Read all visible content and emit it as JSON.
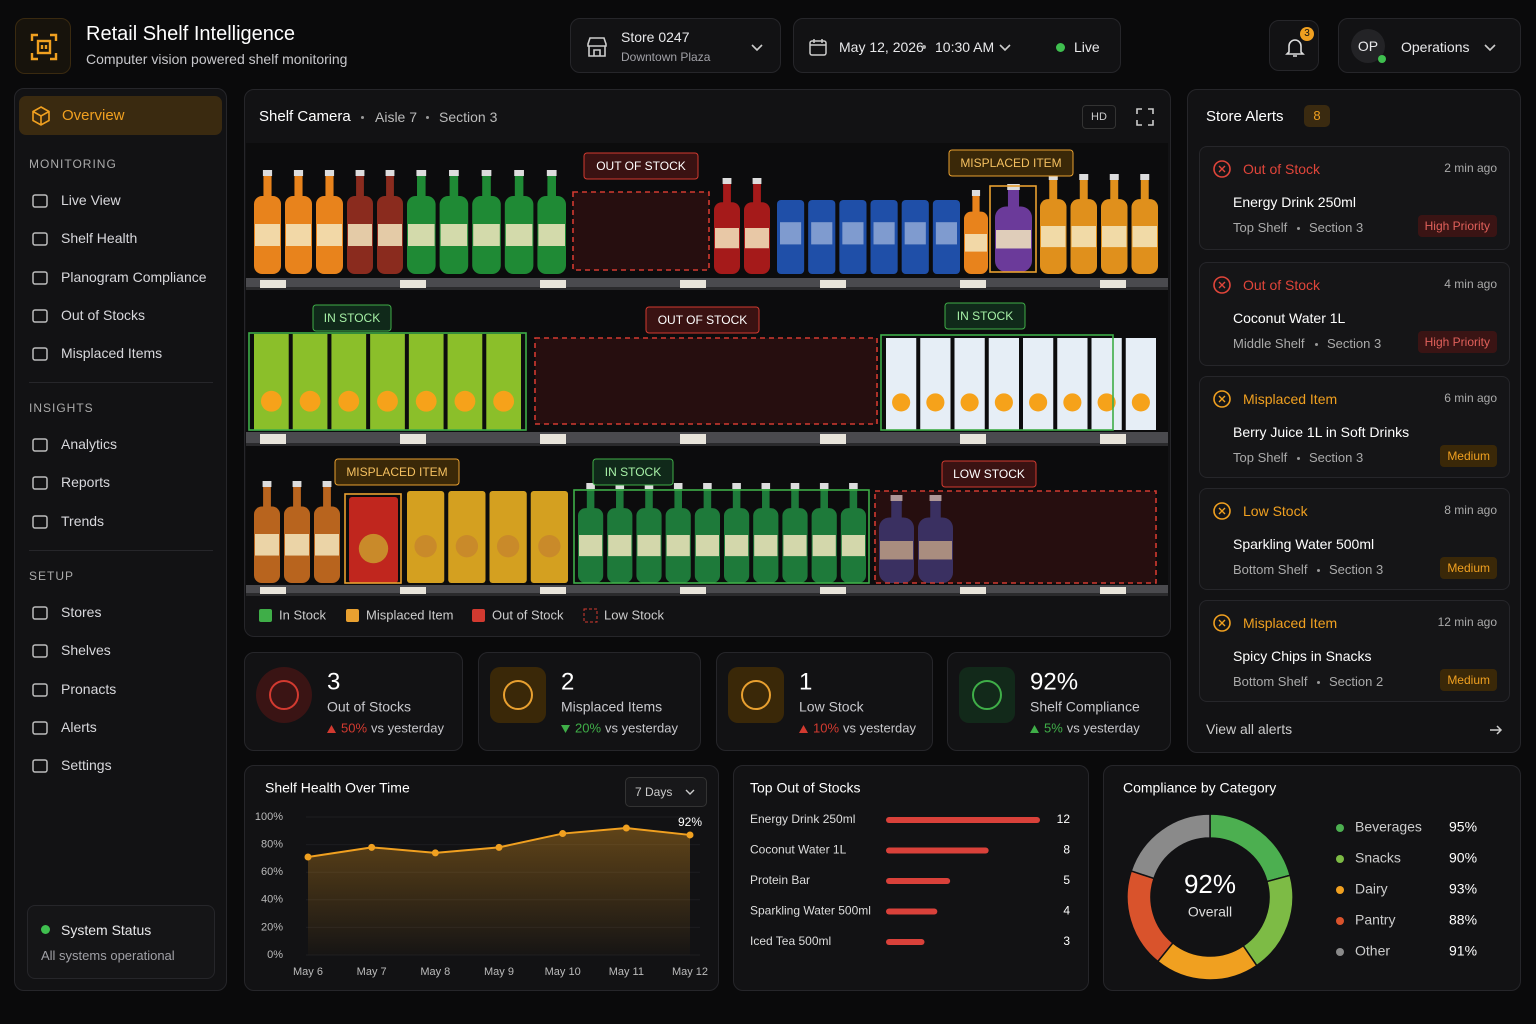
{
  "header": {
    "title": "Retail Shelf Intelligence",
    "subtitle": "Computer vision powered shelf monitoring",
    "store": {
      "name": "Store 0247",
      "location": "Downtown Plaza"
    },
    "date": "May 12, 2026",
    "time": "10:30 AM",
    "status": "Live",
    "notifications": "3",
    "user_initials": "OP",
    "user_role": "Operations"
  },
  "sidebar": {
    "active": "Overview",
    "groups": [
      {
        "title": "MONITORING",
        "items": [
          "Live View",
          "Shelf Health",
          "Planogram Compliance",
          "Out of Stocks",
          "Misplaced Items"
        ]
      },
      {
        "title": "INSIGHTS",
        "items": [
          "Analytics",
          "Reports",
          "Trends"
        ]
      },
      {
        "title": "SETUP",
        "items": [
          "Stores",
          "Shelves",
          "Pronacts",
          "Alerts",
          "Settings"
        ]
      }
    ],
    "system_status": {
      "title": "System Status",
      "text": "All systems operational"
    }
  },
  "camera": {
    "title": "Shelf Camera",
    "aisle": "Aisle 7",
    "section": "Section 3",
    "quality": "HD",
    "tags": [
      "OUT OF STOCK",
      "MISPLACED ITEM",
      "IN STOCK",
      "OUT OF STOCK",
      "IN STOCK",
      "MISPLACED ITEM",
      "IN STOCK",
      "LOW STOCK"
    ],
    "legend": [
      "In Stock",
      "Misplaced Item",
      "Out of Stock",
      "Low Stock"
    ]
  },
  "kpis": [
    {
      "value": "3",
      "label": "Out of Stocks",
      "change": "50%",
      "note": "vs yesterday"
    },
    {
      "value": "2",
      "label": "Misplaced Items",
      "change": "20%",
      "note": "vs yesterday"
    },
    {
      "value": "1",
      "label": "Low Stock",
      "change": "10%",
      "note": "vs yesterday"
    },
    {
      "value": "92%",
      "label": "Shelf Compliance",
      "change": "5%",
      "note": "vs yesterday"
    }
  ],
  "alerts": {
    "title": "Store Alerts",
    "count": "8",
    "items": [
      {
        "type": "Out of Stock",
        "time": "2 min ago",
        "product": "Energy Drink 250ml",
        "shelf": "Top Shelf",
        "section": "Section 3",
        "priority": "High Priority"
      },
      {
        "type": "Out of Stock",
        "time": "4 min ago",
        "product": "Coconut Water 1L",
        "shelf": "Middle Shelf",
        "section": "Section 3",
        "priority": "High Priority"
      },
      {
        "type": "Misplaced Item",
        "time": "6 min ago",
        "product": "Berry Juice 1L in Soft Drinks",
        "shelf": "Top Shelf",
        "section": "Section 3",
        "priority": "Medium"
      },
      {
        "type": "Low Stock",
        "time": "8 min ago",
        "product": "Sparkling Water 500ml",
        "shelf": "Bottom Shelf",
        "section": "Section 3",
        "priority": "Medium"
      },
      {
        "type": "Misplaced Item",
        "time": "12 min ago",
        "product": "Spicy Chips in Snacks",
        "shelf": "Bottom Shelf",
        "section": "Section 2",
        "priority": "Medium"
      }
    ],
    "footer": "View all alerts"
  },
  "chart_data": [
    {
      "type": "line",
      "title": "Shelf Health Over Time",
      "filter": "7 Days",
      "categories": [
        "May 6",
        "May 7",
        "May 8",
        "May 9",
        "May 10",
        "May 11",
        "May 12"
      ],
      "values": [
        71,
        78,
        74,
        78,
        88,
        92,
        87
      ],
      "color": "#f0a020",
      "ylim": [
        0,
        100
      ],
      "yticks": [
        {
          "value": 0,
          "label": "0%"
        },
        {
          "value": 20,
          "label": "20%"
        },
        {
          "value": 40,
          "label": "40%"
        },
        {
          "value": 60,
          "label": "60%"
        },
        {
          "value": 80,
          "label": "80%"
        },
        {
          "value": 100,
          "label": "100%"
        }
      ],
      "grid": true,
      "annotation": "92%"
    },
    {
      "type": "hbar",
      "title": "Top Out of Stocks",
      "categories": [
        "Energy Drink 250ml",
        "Coconut Water 1L",
        "Protein Bar",
        "Sparkling Water 500ml",
        "Iced Tea 500ml"
      ],
      "values": [
        12,
        8,
        5,
        4,
        3
      ],
      "color": "#d9413a"
    },
    {
      "type": "donut",
      "title": "Compliance by Category",
      "center_value": "92%",
      "center_label": "Overall",
      "categories": [
        "Beverages",
        "Snacks",
        "Dairy",
        "Pantry",
        "Other"
      ],
      "values": [
        95,
        90,
        93,
        88,
        91
      ],
      "value_labels": [
        "95%",
        "90%",
        "93%",
        "88%",
        "91%"
      ],
      "colors": [
        "#4caf50",
        "#7dbb45",
        "#f0a020",
        "#d9532c",
        "#8a8a8a"
      ]
    }
  ]
}
